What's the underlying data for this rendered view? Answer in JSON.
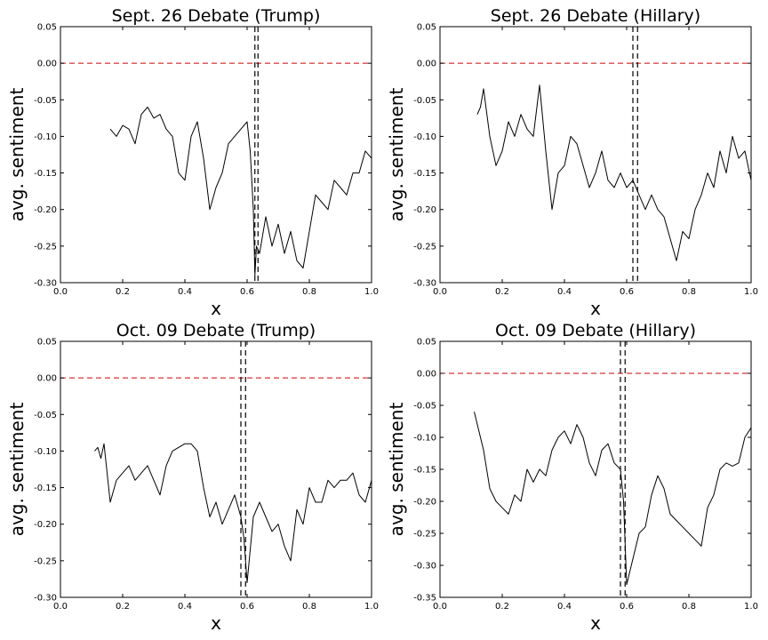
{
  "chart_data": [
    {
      "type": "line",
      "title": "Sept. 26 Debate (Trump)",
      "xlabel": "x",
      "ylabel": "avg. sentiment",
      "xlim": [
        0.0,
        1.0
      ],
      "ylim": [
        -0.3,
        0.05
      ],
      "xticks": [
        "0.0",
        "0.2",
        "0.4",
        "0.6",
        "0.8",
        "1.0"
      ],
      "yticks": [
        "0.05",
        "0.00",
        "-0.05",
        "-0.10",
        "-0.15",
        "-0.20",
        "-0.25",
        "-0.30"
      ],
      "reference_line": {
        "y": 0.0,
        "color": "#cc0000",
        "style": "dashed"
      },
      "vlines": [
        0.625,
        0.635
      ],
      "grid": false,
      "series": [
        {
          "color": "#000000",
          "x": [
            0.16,
            0.18,
            0.2,
            0.22,
            0.24,
            0.26,
            0.28,
            0.3,
            0.32,
            0.34,
            0.36,
            0.38,
            0.4,
            0.42,
            0.44,
            0.46,
            0.48,
            0.5,
            0.52,
            0.54,
            0.56,
            0.58,
            0.6,
            0.61,
            0.62,
            0.625,
            0.63,
            0.64,
            0.66,
            0.68,
            0.7,
            0.72,
            0.74,
            0.76,
            0.78,
            0.8,
            0.82,
            0.84,
            0.86,
            0.88,
            0.9,
            0.92,
            0.94,
            0.96,
            0.98,
            1.0
          ],
          "y": [
            -0.09,
            -0.1,
            -0.085,
            -0.09,
            -0.11,
            -0.07,
            -0.06,
            -0.075,
            -0.07,
            -0.09,
            -0.1,
            -0.15,
            -0.16,
            -0.1,
            -0.08,
            -0.13,
            -0.2,
            -0.17,
            -0.15,
            -0.11,
            -0.1,
            -0.09,
            -0.08,
            -0.12,
            -0.2,
            -0.29,
            -0.25,
            -0.26,
            -0.21,
            -0.25,
            -0.22,
            -0.26,
            -0.23,
            -0.27,
            -0.28,
            -0.23,
            -0.18,
            -0.19,
            -0.2,
            -0.16,
            -0.17,
            -0.18,
            -0.15,
            -0.15,
            -0.12,
            -0.13
          ]
        }
      ]
    },
    {
      "type": "line",
      "title": "Sept. 26 Debate (Hillary)",
      "xlabel": "x",
      "ylabel": "avg. sentiment",
      "xlim": [
        0.0,
        1.0
      ],
      "ylim": [
        -0.3,
        0.05
      ],
      "xticks": [
        "0.0",
        "0.2",
        "0.4",
        "0.6",
        "0.8",
        "1.0"
      ],
      "yticks": [
        "0.05",
        "0.00",
        "-0.05",
        "-0.10",
        "-0.15",
        "-0.20",
        "-0.25",
        "-0.30"
      ],
      "reference_line": {
        "y": 0.0,
        "color": "#cc0000",
        "style": "dashed"
      },
      "vlines": [
        0.62,
        0.635
      ],
      "grid": false,
      "series": [
        {
          "color": "#000000",
          "x": [
            0.12,
            0.13,
            0.14,
            0.16,
            0.18,
            0.2,
            0.22,
            0.24,
            0.26,
            0.28,
            0.3,
            0.32,
            0.34,
            0.36,
            0.38,
            0.4,
            0.42,
            0.44,
            0.46,
            0.48,
            0.5,
            0.52,
            0.54,
            0.56,
            0.58,
            0.6,
            0.62,
            0.64,
            0.66,
            0.68,
            0.7,
            0.72,
            0.74,
            0.76,
            0.78,
            0.8,
            0.82,
            0.84,
            0.86,
            0.88,
            0.9,
            0.92,
            0.94,
            0.96,
            0.98,
            1.0
          ],
          "y": [
            -0.07,
            -0.06,
            -0.035,
            -0.1,
            -0.14,
            -0.12,
            -0.08,
            -0.1,
            -0.07,
            -0.09,
            -0.1,
            -0.03,
            -0.12,
            -0.2,
            -0.15,
            -0.14,
            -0.1,
            -0.11,
            -0.14,
            -0.17,
            -0.15,
            -0.12,
            -0.16,
            -0.17,
            -0.15,
            -0.17,
            -0.16,
            -0.18,
            -0.2,
            -0.18,
            -0.2,
            -0.21,
            -0.24,
            -0.27,
            -0.23,
            -0.24,
            -0.2,
            -0.18,
            -0.15,
            -0.17,
            -0.12,
            -0.15,
            -0.1,
            -0.13,
            -0.12,
            -0.16
          ]
        }
      ]
    },
    {
      "type": "line",
      "title": "Oct. 09 Debate (Trump)",
      "xlabel": "x",
      "ylabel": "avg. sentiment",
      "xlim": [
        0.0,
        1.0
      ],
      "ylim": [
        -0.3,
        0.05
      ],
      "xticks": [
        "0.0",
        "0.2",
        "0.4",
        "0.6",
        "0.8",
        "1.0"
      ],
      "yticks": [
        "0.05",
        "0.00",
        "-0.05",
        "-0.10",
        "-0.15",
        "-0.20",
        "-0.25",
        "-0.30"
      ],
      "reference_line": {
        "y": 0.0,
        "color": "#cc0000",
        "style": "dashed"
      },
      "vlines": [
        0.58,
        0.595
      ],
      "grid": false,
      "series": [
        {
          "color": "#000000",
          "x": [
            0.11,
            0.12,
            0.13,
            0.14,
            0.16,
            0.18,
            0.2,
            0.22,
            0.24,
            0.26,
            0.28,
            0.3,
            0.32,
            0.34,
            0.36,
            0.38,
            0.4,
            0.42,
            0.44,
            0.46,
            0.48,
            0.5,
            0.52,
            0.54,
            0.56,
            0.58,
            0.59,
            0.6,
            0.62,
            0.64,
            0.66,
            0.68,
            0.7,
            0.72,
            0.74,
            0.76,
            0.78,
            0.8,
            0.82,
            0.84,
            0.86,
            0.88,
            0.9,
            0.92,
            0.94,
            0.96,
            0.98,
            1.0
          ],
          "y": [
            -0.1,
            -0.095,
            -0.11,
            -0.09,
            -0.17,
            -0.14,
            -0.13,
            -0.12,
            -0.14,
            -0.13,
            -0.12,
            -0.14,
            -0.16,
            -0.12,
            -0.1,
            -0.095,
            -0.09,
            -0.09,
            -0.1,
            -0.15,
            -0.19,
            -0.17,
            -0.2,
            -0.18,
            -0.16,
            -0.19,
            -0.22,
            -0.28,
            -0.19,
            -0.17,
            -0.19,
            -0.21,
            -0.2,
            -0.23,
            -0.25,
            -0.18,
            -0.2,
            -0.15,
            -0.17,
            -0.17,
            -0.14,
            -0.15,
            -0.14,
            -0.14,
            -0.13,
            -0.16,
            -0.17,
            -0.14
          ]
        }
      ]
    },
    {
      "type": "line",
      "title": "Oct. 09 Debate (Hillary)",
      "xlabel": "x",
      "ylabel": "avg. sentiment",
      "xlim": [
        0.0,
        1.0
      ],
      "ylim": [
        -0.35,
        0.05
      ],
      "xticks": [
        "0.0",
        "0.2",
        "0.4",
        "0.6",
        "0.8",
        "1.0"
      ],
      "yticks": [
        "0.05",
        "0.00",
        "-0.05",
        "-0.10",
        "-0.15",
        "-0.20",
        "-0.25",
        "-0.30",
        "-0.35"
      ],
      "reference_line": {
        "y": 0.0,
        "color": "#cc0000",
        "style": "dashed"
      },
      "vlines": [
        0.58,
        0.595
      ],
      "grid": false,
      "series": [
        {
          "color": "#000000",
          "x": [
            0.11,
            0.12,
            0.14,
            0.16,
            0.18,
            0.2,
            0.22,
            0.24,
            0.26,
            0.28,
            0.3,
            0.32,
            0.34,
            0.36,
            0.38,
            0.4,
            0.42,
            0.44,
            0.46,
            0.48,
            0.5,
            0.52,
            0.54,
            0.56,
            0.58,
            0.59,
            0.6,
            0.62,
            0.64,
            0.66,
            0.68,
            0.7,
            0.72,
            0.74,
            0.76,
            0.78,
            0.8,
            0.82,
            0.84,
            0.86,
            0.88,
            0.9,
            0.92,
            0.94,
            0.96,
            0.98,
            1.0
          ],
          "y": [
            -0.06,
            -0.08,
            -0.12,
            -0.18,
            -0.2,
            -0.21,
            -0.22,
            -0.19,
            -0.2,
            -0.15,
            -0.17,
            -0.15,
            -0.16,
            -0.12,
            -0.1,
            -0.09,
            -0.11,
            -0.08,
            -0.1,
            -0.14,
            -0.16,
            -0.12,
            -0.11,
            -0.14,
            -0.15,
            -0.2,
            -0.33,
            -0.29,
            -0.25,
            -0.24,
            -0.19,
            -0.16,
            -0.18,
            -0.22,
            -0.23,
            -0.24,
            -0.25,
            -0.26,
            -0.27,
            -0.21,
            -0.19,
            -0.15,
            -0.14,
            -0.145,
            -0.14,
            -0.1,
            -0.085
          ]
        }
      ]
    }
  ]
}
